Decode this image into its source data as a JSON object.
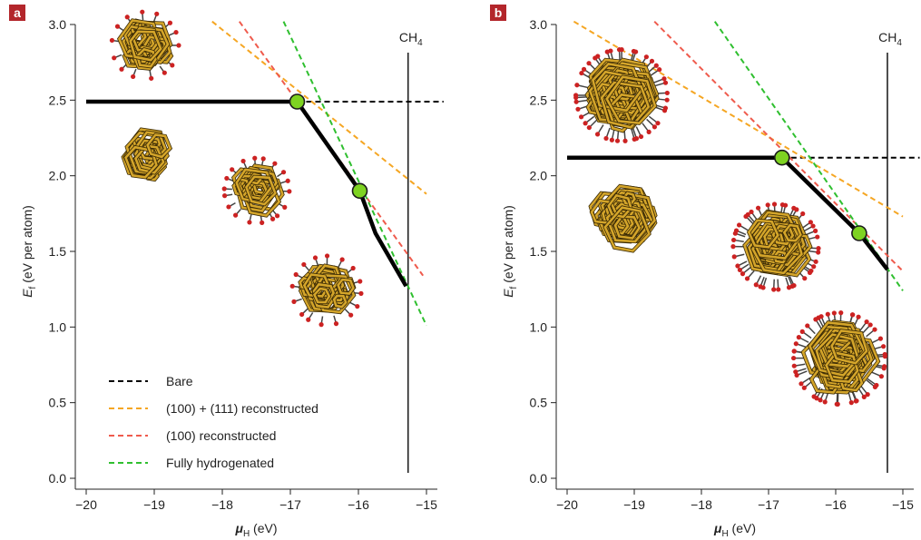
{
  "chart_data": [
    {
      "panel": "a",
      "type": "line",
      "xlabel": "μH (eV)",
      "ylabel": "Ef (eV per atom)",
      "xlim": [
        -20,
        -15
      ],
      "ylim": [
        0,
        3.0
      ],
      "x_ticks": [
        -20,
        -19,
        -18,
        -17,
        -16,
        -15
      ],
      "y_ticks": [
        0.0,
        0.5,
        1.0,
        1.5,
        2.0,
        2.5,
        3.0
      ],
      "vertical_line": {
        "x": -15.27,
        "label": "CH4"
      },
      "series": [
        {
          "name": "Bare",
          "style": "dashed",
          "color": "#000000",
          "x": [
            -16.9,
            -14.75
          ],
          "y": [
            2.49,
            2.49
          ]
        },
        {
          "name": "(100) + (111) reconstructed",
          "style": "dashed",
          "color": "#f5a623",
          "x": [
            -18.15,
            -15.0
          ],
          "y": [
            3.02,
            1.88
          ]
        },
        {
          "name": "(100) reconstructed",
          "style": "dashed",
          "color": "#ef5b4d",
          "x": [
            -17.75,
            -15.05
          ],
          "y": [
            3.02,
            1.34
          ]
        },
        {
          "name": "Fully hydrogenated",
          "style": "dashed",
          "color": "#2fbf2f",
          "x": [
            -17.1,
            -15.0
          ],
          "y": [
            3.02,
            1.01
          ]
        },
        {
          "name": "",
          "style": "solid-thick",
          "color": "#000000",
          "x": [
            -20.0,
            -16.9,
            -15.98,
            -15.75,
            -15.3
          ],
          "y": [
            2.49,
            2.49,
            1.9,
            1.62,
            1.27
          ]
        }
      ],
      "markers": [
        {
          "x": -16.9,
          "y": 2.49
        },
        {
          "x": -15.98,
          "y": 1.9
        }
      ]
    },
    {
      "panel": "b",
      "type": "line",
      "xlabel": "μH (eV)",
      "ylabel": "Ef (eV per atom)",
      "xlim": [
        -20,
        -15
      ],
      "ylim": [
        0,
        3.0
      ],
      "x_ticks": [
        -20,
        -19,
        -18,
        -17,
        -16,
        -15
      ],
      "y_ticks": [
        0.0,
        0.5,
        1.0,
        1.5,
        2.0,
        2.5,
        3.0
      ],
      "vertical_line": {
        "x": -15.23,
        "label": "CH4"
      },
      "series": [
        {
          "name": "Bare",
          "style": "dashed",
          "color": "#000000",
          "x": [
            -16.8,
            -14.75
          ],
          "y": [
            2.12,
            2.12
          ]
        },
        {
          "name": "(100) + (111) reconstructed",
          "style": "dashed",
          "color": "#f5a623",
          "x": [
            -19.9,
            -15.0
          ],
          "y": [
            3.02,
            1.73
          ]
        },
        {
          "name": "(100) reconstructed",
          "style": "dashed",
          "color": "#ef5b4d",
          "x": [
            -18.7,
            -15.0
          ],
          "y": [
            3.02,
            1.37
          ]
        },
        {
          "name": "Fully hydrogenated",
          "style": "dashed",
          "color": "#2fbf2f",
          "x": [
            -17.8,
            -15.0
          ],
          "y": [
            3.02,
            1.24
          ]
        },
        {
          "name": "",
          "style": "solid-thick",
          "color": "#000000",
          "x": [
            -20.0,
            -16.8,
            -15.65,
            -15.23
          ],
          "y": [
            2.12,
            2.12,
            1.62,
            1.38
          ]
        }
      ],
      "markers": [
        {
          "x": -16.8,
          "y": 2.12
        },
        {
          "x": -15.65,
          "y": 1.62
        }
      ]
    }
  ],
  "legend": {
    "placement": "lower-left of panel a",
    "entries": [
      {
        "label": "Bare",
        "color": "#000000"
      },
      {
        "label": "(100) + (111) reconstructed",
        "color": "#f5a623"
      },
      {
        "label": "(100) reconstructed",
        "color": "#ef5b4d"
      },
      {
        "label": "Fully hydrogenated",
        "color": "#2fbf2f"
      }
    ]
  },
  "colors": {
    "marker_fill": "#7ed321",
    "panel_label_bg": "#b3262b",
    "cluster_carbon": "#d4a52a",
    "cluster_hydrogen": "#cc2222"
  }
}
